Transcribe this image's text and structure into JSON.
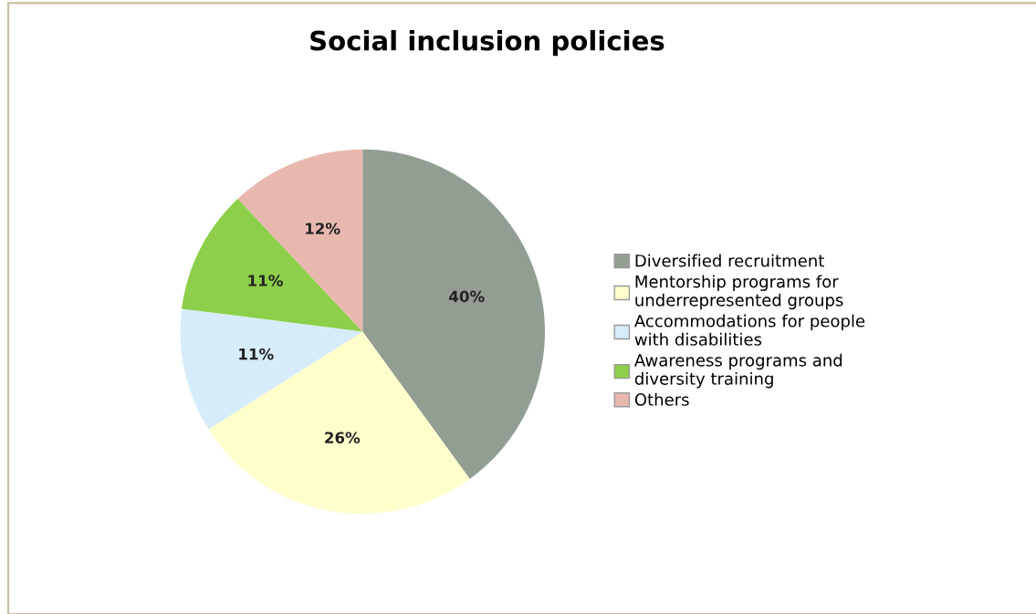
{
  "chart_data": {
    "type": "pie",
    "title": "Social inclusion policies",
    "categories": [
      "Diversified recruitment",
      "Mentorship programs for\nunderrepresented groups",
      "Accommodations for people\nwith disabilities",
      "Awareness programs and\ndiversity training",
      "Others"
    ],
    "values": [
      40,
      26,
      11,
      11,
      12
    ],
    "colors": [
      "#939e93",
      "#ffffcc",
      "#d6ecfb",
      "#8dcf4a",
      "#e8b8ae"
    ],
    "value_labels": [
      "40%",
      "26%",
      "11%",
      "11%",
      "12%"
    ],
    "legend": "right"
  }
}
